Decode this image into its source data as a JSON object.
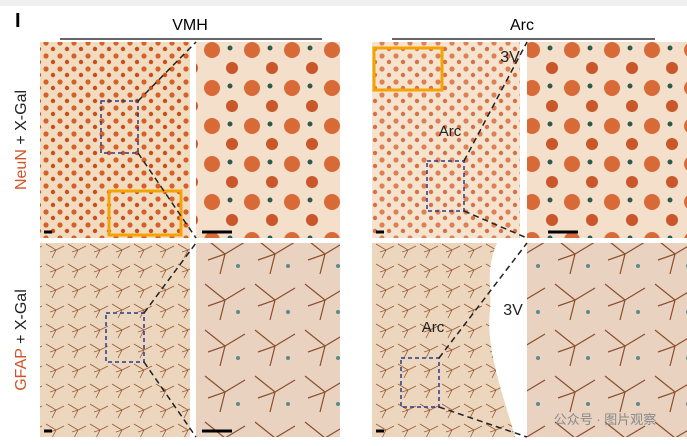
{
  "panel_label": "I",
  "groups": [
    {
      "title": "VMH"
    },
    {
      "title": "Arc"
    }
  ],
  "row_labels": [
    {
      "marker": "NeuN",
      "suffix": " + X-Gal"
    },
    {
      "marker": "GFAP",
      "suffix": " + X-Gal"
    }
  ],
  "image_labels": [
    "3V",
    "Arc",
    "3V",
    "Arc"
  ],
  "watermark": "公众号 · 图片观察"
}
